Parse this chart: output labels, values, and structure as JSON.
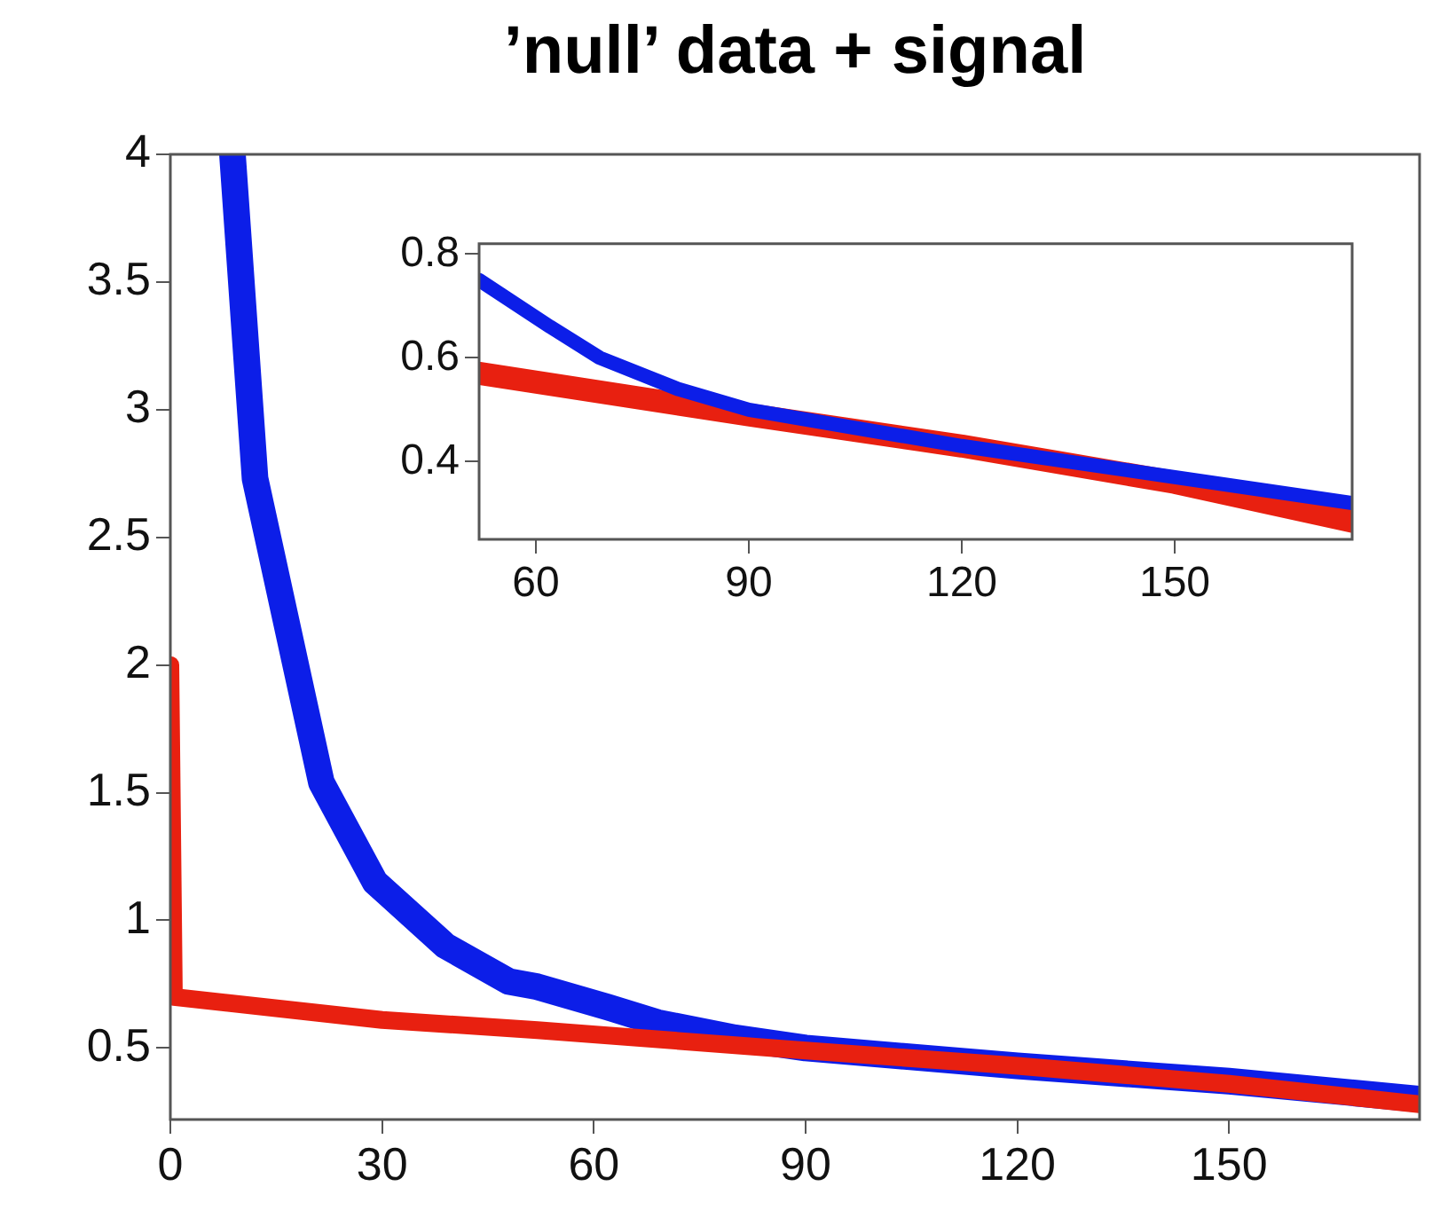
{
  "chart_data": [
    {
      "type": "line",
      "title": "’null’ data + signal",
      "xlim": [
        0,
        177
      ],
      "xticks": [
        0,
        30,
        60,
        90,
        120,
        150
      ],
      "ylim": [
        0.22,
        4
      ],
      "yticks": [
        0.5,
        1,
        1.5,
        2,
        2.5,
        3,
        3.5,
        4
      ],
      "grid": false,
      "legend": false,
      "marker": "none",
      "line_style": "solid",
      "series": [
        {
          "color": "#e82010",
          "x": [
            0,
            0.5,
            30,
            52,
            90,
            120,
            150,
            177
          ],
          "values": [
            2,
            0.7,
            0.61,
            0.57,
            0.49,
            0.43,
            0.36,
            0.28
          ]
        },
        {
          "color": "#0c1ee8",
          "x": [
            8.8,
            12,
            21.4,
            29,
            39,
            48,
            52,
            62,
            69,
            80,
            90,
            120,
            150,
            177
          ],
          "values": [
            4,
            2.73,
            1.54,
            1.15,
            0.9,
            0.76,
            0.74,
            0.66,
            0.6,
            0.54,
            0.5,
            0.43,
            0.37,
            0.3
          ]
        }
      ]
    },
    {
      "type": "line",
      "xlim": [
        52,
        175
      ],
      "xticks": [
        60,
        90,
        120,
        150
      ],
      "ylim": [
        0.25,
        0.82
      ],
      "yticks": [
        0.4,
        0.6,
        0.8
      ],
      "grid": false,
      "legend": false,
      "marker": "none",
      "line_style": "solid",
      "series": [
        {
          "color": "#0c1ee8",
          "x": [
            52,
            62,
            69,
            80,
            90,
            120,
            150,
            175
          ],
          "values": [
            0.75,
            0.66,
            0.6,
            0.54,
            0.5,
            0.43,
            0.37,
            0.32
          ]
        },
        {
          "color": "#e82010",
          "x": [
            52,
            90,
            120,
            150,
            175
          ],
          "values": [
            0.57,
            0.49,
            0.43,
            0.36,
            0.285
          ]
        }
      ]
    }
  ]
}
